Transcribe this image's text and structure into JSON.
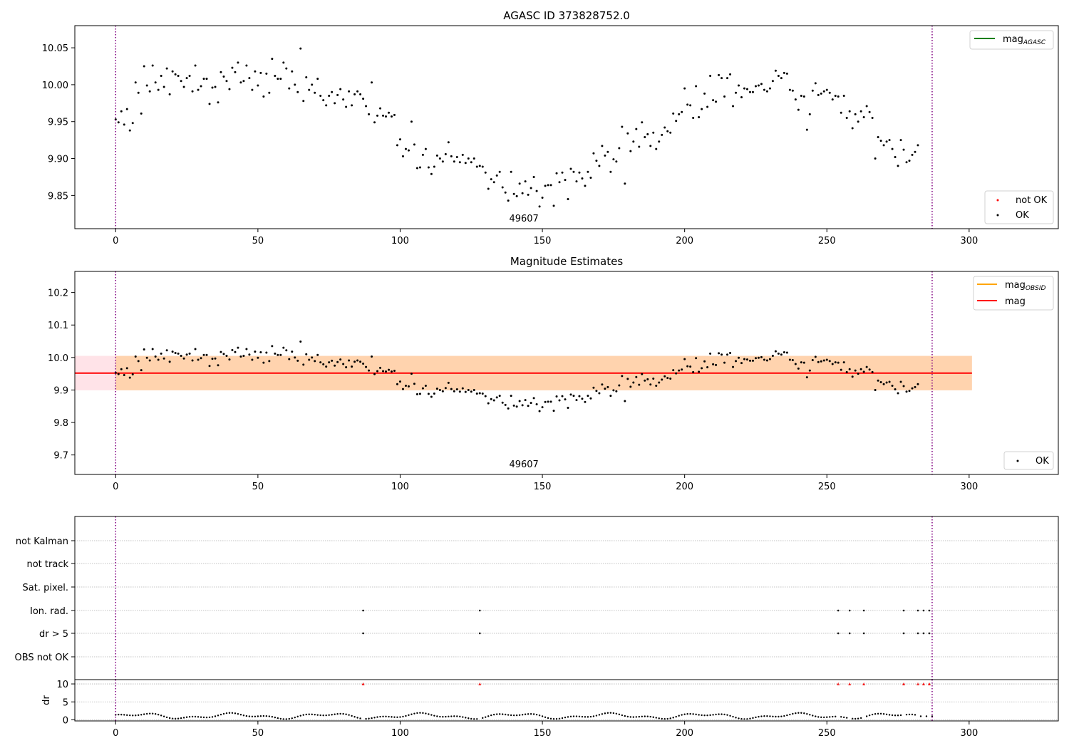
{
  "figure": {
    "colors": {
      "ok": "#000000",
      "not_ok": "#ff0000",
      "mag_agasc": "#008000",
      "mag_obsid": "#ffa500",
      "mag": "#ff0000",
      "band_outer": "#ffc0cb",
      "band_inner": "#ffa500",
      "vline": "#800080",
      "grid": "#b0b0b0"
    }
  },
  "chart_data": [
    {
      "type": "scatter",
      "title": "AGASC ID 373828752.0",
      "xlim": [
        -14.35,
        331.35
      ],
      "ylim": [
        9.805,
        10.08
      ],
      "xticks": [
        0,
        50,
        100,
        150,
        200,
        250,
        300
      ],
      "xtick_labels": [
        "0",
        "50",
        "100",
        "150",
        "200",
        "250",
        "300"
      ],
      "yticks": [
        9.85,
        9.9,
        9.95,
        10.0,
        10.05
      ],
      "ytick_labels": [
        "9.85",
        "9.90",
        "9.95",
        "10.00",
        "10.05"
      ],
      "obs_boundaries": [
        0,
        287
      ],
      "obs_label": "49607",
      "obs_label_x": 143.5,
      "legend_lines": [
        {
          "label": "mag",
          "sub": "AGASC",
          "color_key": "mag_agasc"
        }
      ],
      "legend_points": [
        {
          "label": "not OK",
          "color_key": "not_ok"
        },
        {
          "label": "OK",
          "color_key": "ok"
        }
      ],
      "series_ok_y": [
        9.953,
        9.949,
        9.964,
        9.946,
        9.967,
        9.938,
        9.948,
        10.003,
        9.989,
        9.961,
        10.025,
        9.999,
        9.991,
        10.026,
        10.003,
        9.993,
        10.012,
        9.997,
        10.022,
        9.987,
        10.018,
        10.014,
        10.012,
        10.005,
        9.997,
        10.009,
        10.012,
        9.991,
        10.026,
        9.993,
        9.998,
        10.008,
        10.008,
        9.974,
        9.996,
        9.997,
        9.976,
        10.017,
        10.011,
        10.005,
        9.994,
        10.023,
        10.017,
        10.03,
        10.003,
        10.005,
        10.026,
        10.009,
        9.993,
        10.018,
        9.999,
        10.016,
        9.984,
        10.015,
        9.989,
        10.035,
        10.012,
        10.008,
        10.008,
        10.03,
        10.022,
        9.995,
        10.018,
        10.0,
        9.99,
        10.049,
        9.978,
        10.01,
        9.993,
        10.0,
        9.989,
        10.008,
        9.985,
        9.979,
        9.972,
        9.985,
        9.99,
        9.975,
        9.986,
        9.994,
        9.98,
        9.97,
        9.991,
        9.972,
        9.987,
        9.991,
        9.987,
        9.981,
        9.971,
        9.96,
        10.003,
        9.949,
        9.958,
        9.968,
        9.958,
        9.957,
        9.962,
        9.957,
        9.959,
        9.918,
        9.926,
        9.903,
        9.913,
        9.911,
        9.95,
        9.919,
        9.887,
        9.888,
        9.905,
        9.913,
        9.888,
        9.879,
        9.889,
        9.904,
        9.9,
        9.896,
        9.906,
        9.922,
        9.903,
        9.896,
        9.902,
        9.895,
        9.905,
        9.894,
        9.9,
        9.895,
        9.9,
        9.889,
        9.89,
        9.889,
        9.881,
        9.859,
        9.872,
        9.868,
        9.877,
        9.882,
        9.861,
        9.854,
        9.843,
        9.882,
        9.852,
        9.849,
        9.866,
        9.853,
        9.869,
        9.851,
        9.86,
        9.875,
        9.856,
        9.835,
        9.847,
        9.863,
        9.864,
        9.864,
        9.836,
        9.88,
        9.868,
        9.881,
        9.871,
        9.845,
        9.886,
        9.882,
        9.869,
        9.881,
        9.873,
        9.863,
        9.882,
        9.874,
        9.907,
        9.897,
        9.89,
        9.917,
        9.904,
        9.909,
        9.882,
        9.899,
        9.896,
        9.914,
        9.943,
        9.866,
        9.934,
        9.91,
        9.923,
        9.94,
        9.916,
        9.949,
        9.929,
        9.933,
        9.917,
        9.935,
        9.913,
        9.923,
        9.932,
        9.942,
        9.937,
        9.935,
        9.961,
        9.951,
        9.96,
        9.963,
        9.995,
        9.973,
        9.972,
        9.955,
        9.998,
        9.956,
        9.967,
        9.988,
        9.97,
        10.012,
        9.979,
        9.977,
        10.013,
        10.009,
        9.984,
        10.009,
        10.014,
        9.971,
        9.989,
        9.999,
        9.983,
        9.995,
        9.994,
        9.99,
        9.99,
        9.998,
        9.999,
        10.001,
        9.993,
        9.991,
        9.995,
        10.005,
        10.019,
        10.012,
        10.009,
        10.016,
        10.015,
        9.993,
        9.992,
        9.98,
        9.966,
        9.985,
        9.984,
        9.939,
        9.96,
        9.992,
        10.002,
        9.986,
        9.988,
        9.991,
        9.993,
        9.989,
        9.98,
        9.985,
        9.984,
        9.962,
        9.985,
        9.955,
        9.964,
        9.941,
        9.96,
        9.95,
        9.964,
        9.956,
        9.971,
        9.963,
        9.955,
        9.9,
        9.929,
        9.924,
        9.918,
        9.923,
        9.925,
        9.913,
        9.902,
        9.89,
        9.925,
        9.912,
        9.895,
        9.897,
        9.905,
        9.909,
        9.918
      ]
    },
    {
      "type": "scatter",
      "title": "Magnitude Estimates",
      "xlim": [
        -14.35,
        331.35
      ],
      "ylim": [
        9.64,
        10.265
      ],
      "xticks": [
        0,
        50,
        100,
        150,
        200,
        250,
        300
      ],
      "xtick_labels": [
        "0",
        "50",
        "100",
        "150",
        "200",
        "250",
        "300"
      ],
      "yticks": [
        9.7,
        9.8,
        9.9,
        10.0,
        10.1,
        10.2
      ],
      "ytick_labels": [
        "9.7",
        "9.8",
        "9.9",
        "10.0",
        "10.1",
        "10.2"
      ],
      "obs_boundaries": [
        0,
        287
      ],
      "obs_label": "49607",
      "obs_label_x": 143.5,
      "mag_line": {
        "value": 9.952,
        "x_range": [
          -14.35,
          301
        ]
      },
      "band_outer": {
        "ymin": 9.899,
        "ymax": 10.005,
        "x_range": [
          -14.35,
          301
        ]
      },
      "band_inner": {
        "ymin": 9.899,
        "ymax": 10.005,
        "x_range": [
          0,
          301
        ]
      },
      "legend_lines": [
        {
          "label": "mag",
          "sub": "OBSID",
          "color_key": "mag_obsid"
        },
        {
          "label": "mag",
          "sub": "",
          "color_key": "mag"
        }
      ],
      "legend_points": [
        {
          "label": "OK",
          "color_key": "ok"
        }
      ]
    },
    {
      "type": "scatter",
      "title": "",
      "xlim": [
        -14.35,
        331.35
      ],
      "flag_rows": [
        "not Kalman",
        "not track",
        "Sat. pixel.",
        "Ion. rad.",
        "dr > 5",
        "OBS not OK"
      ],
      "flag_points": {
        "Ion. rad.": [
          87,
          128,
          254,
          258,
          263,
          277,
          282,
          284,
          286
        ],
        "dr > 5": [
          87,
          128,
          254,
          258,
          263,
          277,
          282,
          284,
          286
        ]
      },
      "obs_boundaries": [
        0,
        287
      ]
    },
    {
      "type": "scatter",
      "title": "",
      "xlim": [
        -14.35,
        331.35
      ],
      "ylim": [
        -0.3,
        11.2
      ],
      "xticks": [
        0,
        50,
        100,
        150,
        200,
        250,
        300
      ],
      "xtick_labels": [
        "0",
        "50",
        "100",
        "150",
        "200",
        "250",
        "300"
      ],
      "yticks": [
        0,
        5,
        10
      ],
      "ytick_labels": [
        "0",
        "5",
        "10"
      ],
      "ylabel": "dr",
      "clip_value": 10,
      "clipped_x": [
        87,
        128,
        254,
        258,
        263,
        277,
        282,
        284,
        286
      ],
      "obs_boundaries": [
        0,
        287
      ]
    }
  ]
}
